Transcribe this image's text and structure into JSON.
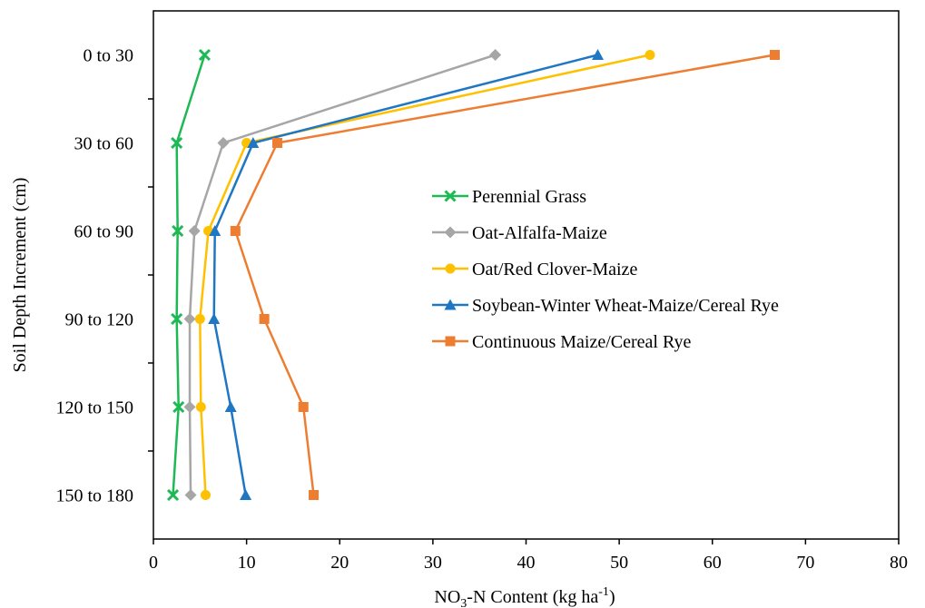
{
  "chart_data": {
    "type": "line",
    "xlabel": {
      "prefix": "NO",
      "sub": "3",
      "mid": "-N Content (kg ha",
      "sup": "-1",
      "suffix": ")"
    },
    "ylabel": "Soil Depth Increment (cm)",
    "xlim": [
      0,
      80
    ],
    "x_ticks": [
      0,
      10,
      20,
      30,
      40,
      50,
      60,
      70,
      80
    ],
    "categories": [
      "0 to 30",
      "30 to 60",
      "60 to 90",
      "90 to 120",
      "120 to 150",
      "150 to 180"
    ],
    "orientation": "depth-profile",
    "grid": false,
    "legend_position": "center-right",
    "series": [
      {
        "name": "Perennial Grass",
        "color": "#1db954",
        "marker": "x-cross",
        "values": [
          5.5,
          2.5,
          2.6,
          2.5,
          2.7,
          2.1
        ]
      },
      {
        "name": "Oat-Alfalfa-Maize",
        "color": "#a6a6a6",
        "marker": "diamond",
        "values": [
          36.7,
          7.5,
          4.4,
          3.9,
          3.9,
          4.0
        ]
      },
      {
        "name": "Oat/Red Clover-Maize",
        "color": "#ffc000",
        "marker": "circle",
        "values": [
          53.3,
          10.0,
          5.9,
          5.0,
          5.1,
          5.6
        ]
      },
      {
        "name": "Soybean-Winter Wheat-Maize/Cereal Rye",
        "color": "#1f77c4",
        "marker": "triangle",
        "values": [
          47.7,
          10.7,
          6.6,
          6.5,
          8.3,
          9.9
        ]
      },
      {
        "name": "Continuous Maize/Cereal Rye",
        "color": "#ed7d31",
        "marker": "square",
        "values": [
          66.7,
          13.3,
          8.8,
          11.9,
          16.1,
          17.2
        ]
      }
    ]
  }
}
